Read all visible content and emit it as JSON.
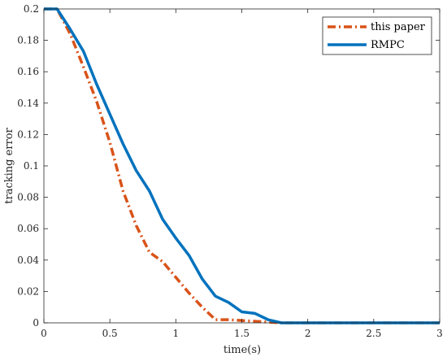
{
  "chart_data": {
    "type": "line",
    "xlabel": "time(s)",
    "ylabel": "tracking error",
    "xlim": [
      0,
      3
    ],
    "ylim": [
      0,
      0.2
    ],
    "xticks": [
      0,
      0.5,
      1,
      1.5,
      2,
      2.5,
      3
    ],
    "xtick_labels": [
      "0",
      "0.5",
      "1",
      "1.5",
      "2",
      "2.5",
      "3"
    ],
    "yticks": [
      0,
      0.02,
      0.04,
      0.06,
      0.08,
      0.1,
      0.12,
      0.14,
      0.16,
      0.18,
      0.2
    ],
    "ytick_labels": [
      "0",
      "0.02",
      "0.04",
      "0.06",
      "0.08",
      "0.1",
      "0.12",
      "0.14",
      "0.16",
      "0.18",
      "0.2"
    ],
    "grid": false,
    "legend_position": "top-right",
    "series": [
      {
        "name": "this paper",
        "color": "#D95319",
        "style": "dash-dot",
        "x": [
          0,
          0.1,
          0.2,
          0.3,
          0.4,
          0.5,
          0.6,
          0.7,
          0.8,
          0.9,
          1.0,
          1.1,
          1.2,
          1.3,
          1.4,
          1.5,
          1.6,
          1.7,
          1.8,
          3.0
        ],
        "y": [
          0.2,
          0.2,
          0.184,
          0.163,
          0.141,
          0.115,
          0.084,
          0.062,
          0.045,
          0.039,
          0.029,
          0.019,
          0.01,
          0.002,
          0.002,
          0.0015,
          0.001,
          0.0005,
          0,
          0
        ]
      },
      {
        "name": "RMPC",
        "color": "#0072BD",
        "style": "solid",
        "x": [
          0,
          0.1,
          0.2,
          0.3,
          0.4,
          0.5,
          0.6,
          0.7,
          0.8,
          0.9,
          1.0,
          1.1,
          1.2,
          1.3,
          1.4,
          1.5,
          1.6,
          1.7,
          1.8,
          3.0
        ],
        "y": [
          0.2,
          0.2,
          0.187,
          0.173,
          0.152,
          0.133,
          0.114,
          0.097,
          0.084,
          0.066,
          0.054,
          0.043,
          0.028,
          0.017,
          0.013,
          0.007,
          0.006,
          0.002,
          0,
          0
        ]
      }
    ]
  }
}
